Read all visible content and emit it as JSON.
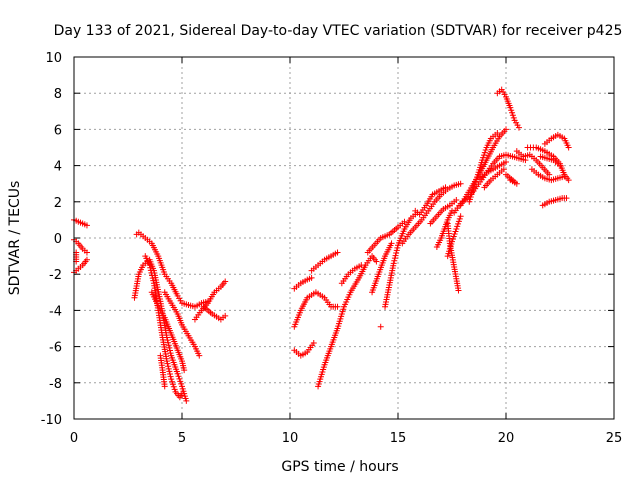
{
  "chart_data": {
    "type": "scatter",
    "title": "Day 133 of 2021, Sidereal Day-to-day VTEC variation (SDTVAR) for receiver p425",
    "xlabel": "GPS time / hours",
    "ylabel": "SDTVAR / TECUs",
    "xlim": [
      0,
      25
    ],
    "ylim": [
      -10,
      10
    ],
    "x_ticks": [
      0,
      5,
      10,
      15,
      20,
      25
    ],
    "y_ticks": [
      -10,
      -8,
      -6,
      -4,
      -2,
      0,
      2,
      4,
      6,
      8,
      10
    ],
    "x_tick_labels": [
      "0",
      "5",
      "10",
      "15",
      "20",
      "25"
    ],
    "y_tick_labels": [
      "-10",
      "-8",
      "-6",
      "-4",
      "-2",
      "0",
      "2",
      "4",
      "6",
      "8",
      "10"
    ],
    "grid": true,
    "marker": "+",
    "color": "#ff0000",
    "segments": [
      [
        [
          0.0,
          1.0
        ],
        [
          0.2,
          0.9
        ],
        [
          0.4,
          0.8
        ],
        [
          0.6,
          0.7
        ]
      ],
      [
        [
          0.0,
          -0.1
        ],
        [
          0.2,
          -0.3
        ],
        [
          0.4,
          -0.6
        ],
        [
          0.6,
          -0.8
        ]
      ],
      [
        [
          0.0,
          -1.9
        ],
        [
          0.2,
          -1.7
        ],
        [
          0.4,
          -1.5
        ],
        [
          0.6,
          -1.2
        ]
      ],
      [
        [
          0.1,
          -0.8
        ],
        [
          0.1,
          -1.3
        ]
      ],
      [
        [
          2.8,
          -3.3
        ],
        [
          3.0,
          -2.0
        ],
        [
          3.2,
          -1.5
        ],
        [
          3.5,
          -1.2
        ],
        [
          3.7,
          -1.8
        ],
        [
          4.0,
          -3.5
        ],
        [
          4.3,
          -5.5
        ],
        [
          4.5,
          -6.5
        ],
        [
          4.8,
          -7.5
        ],
        [
          5.0,
          -8.2
        ],
        [
          5.2,
          -9.0
        ]
      ],
      [
        [
          2.9,
          0.2
        ],
        [
          3.0,
          0.3
        ],
        [
          3.3,
          0.0
        ],
        [
          3.6,
          -0.3
        ],
        [
          3.9,
          -1.0
        ],
        [
          4.2,
          -2.0
        ],
        [
          4.5,
          -2.5
        ],
        [
          4.8,
          -3.2
        ],
        [
          5.0,
          -3.6
        ],
        [
          5.3,
          -3.7
        ],
        [
          5.6,
          -3.8
        ],
        [
          5.9,
          -3.6
        ],
        [
          6.2,
          -3.5
        ]
      ],
      [
        [
          3.3,
          -1.0
        ],
        [
          3.5,
          -1.5
        ],
        [
          3.7,
          -2.5
        ],
        [
          3.9,
          -4.0
        ],
        [
          4.1,
          -5.5
        ],
        [
          4.3,
          -6.8
        ],
        [
          4.5,
          -7.8
        ],
        [
          4.7,
          -8.5
        ],
        [
          4.9,
          -8.8
        ],
        [
          5.0,
          -8.6
        ]
      ],
      [
        [
          4.0,
          -6.5
        ],
        [
          4.1,
          -7.3
        ],
        [
          4.2,
          -8.2
        ]
      ],
      [
        [
          3.6,
          -3.0
        ],
        [
          3.8,
          -3.5
        ],
        [
          4.0,
          -4.0
        ],
        [
          4.2,
          -4.4
        ],
        [
          4.4,
          -5.0
        ],
        [
          4.6,
          -5.6
        ],
        [
          4.8,
          -6.2
        ],
        [
          5.0,
          -6.8
        ],
        [
          5.1,
          -7.3
        ]
      ],
      [
        [
          4.2,
          -3.0
        ],
        [
          4.5,
          -3.6
        ],
        [
          4.8,
          -4.2
        ],
        [
          5.0,
          -4.8
        ],
        [
          5.3,
          -5.4
        ],
        [
          5.6,
          -6.0
        ],
        [
          5.8,
          -6.5
        ]
      ],
      [
        [
          5.6,
          -4.5
        ],
        [
          5.9,
          -4.0
        ],
        [
          6.2,
          -3.6
        ],
        [
          6.5,
          -3.0
        ],
        [
          6.8,
          -2.7
        ],
        [
          7.0,
          -2.4
        ]
      ],
      [
        [
          6.0,
          -3.8
        ],
        [
          6.4,
          -4.2
        ],
        [
          6.8,
          -4.5
        ],
        [
          7.0,
          -4.3
        ]
      ],
      [
        [
          10.2,
          -2.8
        ],
        [
          10.5,
          -2.5
        ],
        [
          10.8,
          -2.3
        ],
        [
          11.0,
          -2.2
        ]
      ],
      [
        [
          10.2,
          -4.9
        ],
        [
          10.5,
          -4.0
        ],
        [
          10.8,
          -3.3
        ],
        [
          11.2,
          -3.0
        ],
        [
          11.6,
          -3.3
        ],
        [
          11.9,
          -3.8
        ],
        [
          12.2,
          -3.8
        ]
      ],
      [
        [
          10.2,
          -6.2
        ],
        [
          10.5,
          -6.5
        ],
        [
          10.8,
          -6.3
        ],
        [
          11.1,
          -5.8
        ]
      ],
      [
        [
          11.3,
          -8.2
        ],
        [
          11.6,
          -7.0
        ],
        [
          11.9,
          -6.0
        ],
        [
          12.2,
          -5.0
        ],
        [
          12.5,
          -3.8
        ],
        [
          12.8,
          -3.0
        ],
        [
          13.2,
          -2.2
        ],
        [
          13.5,
          -1.5
        ],
        [
          13.8,
          -1.0
        ],
        [
          14.0,
          -1.3
        ]
      ],
      [
        [
          11.0,
          -1.8
        ],
        [
          11.3,
          -1.5
        ],
        [
          11.6,
          -1.2
        ],
        [
          11.9,
          -1.0
        ],
        [
          12.2,
          -0.8
        ]
      ],
      [
        [
          12.4,
          -2.5
        ],
        [
          12.7,
          -2.0
        ],
        [
          13.0,
          -1.7
        ],
        [
          13.3,
          -1.5
        ]
      ],
      [
        [
          14.2,
          -4.9
        ]
      ],
      [
        [
          13.6,
          -0.8
        ],
        [
          13.9,
          -0.4
        ],
        [
          14.2,
          0.0
        ],
        [
          14.6,
          0.2
        ],
        [
          15.0,
          0.6
        ],
        [
          15.3,
          0.9
        ]
      ],
      [
        [
          14.4,
          -3.8
        ],
        [
          14.6,
          -2.6
        ],
        [
          14.8,
          -1.4
        ],
        [
          15.0,
          -0.4
        ],
        [
          15.3,
          0.5
        ],
        [
          15.6,
          1.1
        ],
        [
          15.9,
          1.4
        ]
      ],
      [
        [
          13.8,
          -3.0
        ],
        [
          14.1,
          -2.0
        ],
        [
          14.4,
          -1.0
        ],
        [
          14.7,
          -0.3
        ]
      ],
      [
        [
          15.2,
          -0.3
        ],
        [
          15.5,
          0.2
        ],
        [
          15.8,
          0.6
        ],
        [
          16.1,
          1.0
        ],
        [
          16.4,
          1.5
        ],
        [
          16.7,
          2.0
        ],
        [
          17.0,
          2.4
        ],
        [
          17.3,
          2.7
        ],
        [
          17.6,
          2.9
        ],
        [
          17.9,
          3.0
        ]
      ],
      [
        [
          15.8,
          1.5
        ],
        [
          16.0,
          1.3
        ],
        [
          16.3,
          1.8
        ],
        [
          16.6,
          2.4
        ],
        [
          16.9,
          2.6
        ],
        [
          17.2,
          2.8
        ]
      ],
      [
        [
          16.5,
          0.8
        ],
        [
          16.8,
          1.2
        ],
        [
          17.1,
          1.6
        ],
        [
          17.4,
          1.8
        ],
        [
          17.7,
          2.1
        ]
      ],
      [
        [
          16.8,
          -0.5
        ],
        [
          17.0,
          0.0
        ],
        [
          17.3,
          1.0
        ],
        [
          17.5,
          1.5
        ]
      ],
      [
        [
          17.3,
          -1.0
        ],
        [
          17.5,
          -0.2
        ],
        [
          17.7,
          0.5
        ],
        [
          17.9,
          1.2
        ]
      ],
      [
        [
          17.8,
          -2.9
        ],
        [
          17.6,
          -1.6
        ],
        [
          17.4,
          -0.3
        ],
        [
          17.3,
          0.8
        ]
      ],
      [
        [
          17.6,
          1.4
        ],
        [
          17.9,
          1.9
        ],
        [
          18.2,
          2.2
        ],
        [
          18.5,
          2.6
        ],
        [
          18.8,
          3.1
        ],
        [
          19.1,
          3.6
        ],
        [
          19.4,
          4.1
        ],
        [
          19.7,
          4.5
        ],
        [
          20.0,
          4.6
        ],
        [
          20.3,
          4.5
        ],
        [
          20.6,
          4.4
        ],
        [
          20.9,
          4.3
        ]
      ],
      [
        [
          17.9,
          1.8
        ],
        [
          18.2,
          2.4
        ],
        [
          18.5,
          3.0
        ],
        [
          18.8,
          3.6
        ],
        [
          19.1,
          4.3
        ],
        [
          19.4,
          5.0
        ],
        [
          19.7,
          5.6
        ],
        [
          20.0,
          6.0
        ]
      ],
      [
        [
          18.3,
          2.0
        ],
        [
          18.5,
          2.8
        ],
        [
          18.7,
          3.5
        ],
        [
          18.9,
          4.3
        ],
        [
          19.1,
          5.0
        ],
        [
          19.3,
          5.5
        ],
        [
          19.6,
          5.8
        ]
      ],
      [
        [
          18.8,
          3.3
        ],
        [
          19.1,
          3.6
        ],
        [
          19.4,
          3.8
        ],
        [
          19.7,
          4.0
        ],
        [
          20.0,
          4.2
        ]
      ],
      [
        [
          19.6,
          8.0
        ],
        [
          19.8,
          8.2
        ],
        [
          20.0,
          7.8
        ],
        [
          20.2,
          7.2
        ],
        [
          20.4,
          6.5
        ],
        [
          20.6,
          6.1
        ]
      ],
      [
        [
          19.0,
          2.8
        ],
        [
          19.3,
          3.2
        ],
        [
          19.6,
          3.5
        ],
        [
          19.9,
          3.8
        ]
      ],
      [
        [
          20.2,
          3.2
        ],
        [
          20.5,
          3.0
        ],
        [
          20.0,
          3.5
        ]
      ],
      [
        [
          20.5,
          4.8
        ],
        [
          20.8,
          4.5
        ],
        [
          21.1,
          4.6
        ],
        [
          21.4,
          4.3
        ],
        [
          21.7,
          3.9
        ],
        [
          22.0,
          3.5
        ]
      ],
      [
        [
          21.0,
          5.0
        ],
        [
          21.4,
          5.0
        ],
        [
          21.8,
          4.8
        ],
        [
          22.2,
          4.5
        ],
        [
          22.5,
          4.1
        ],
        [
          22.7,
          3.5
        ],
        [
          22.9,
          3.2
        ]
      ],
      [
        [
          21.2,
          3.8
        ],
        [
          21.5,
          3.5
        ],
        [
          21.8,
          3.3
        ],
        [
          22.1,
          3.2
        ],
        [
          22.4,
          3.3
        ],
        [
          22.7,
          3.4
        ]
      ],
      [
        [
          21.8,
          5.2
        ],
        [
          22.1,
          5.5
        ],
        [
          22.4,
          5.7
        ],
        [
          22.7,
          5.5
        ],
        [
          22.9,
          5.0
        ]
      ],
      [
        [
          21.6,
          4.5
        ],
        [
          21.9,
          4.4
        ],
        [
          22.2,
          4.3
        ],
        [
          22.5,
          4.0
        ]
      ],
      [
        [
          21.7,
          1.8
        ],
        [
          22.0,
          2.0
        ],
        [
          22.3,
          2.1
        ],
        [
          22.6,
          2.2
        ],
        [
          22.8,
          2.2
        ]
      ]
    ]
  }
}
